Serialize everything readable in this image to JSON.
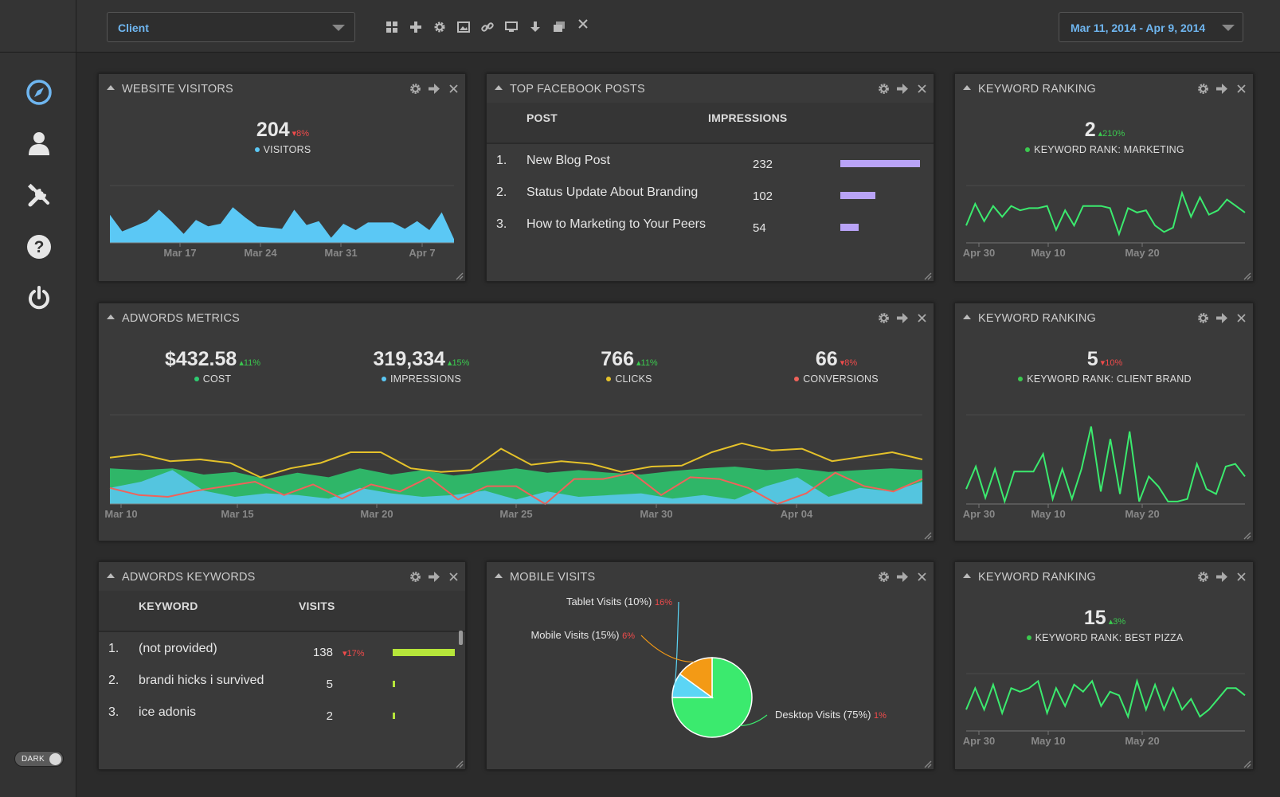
{
  "sidebar": {
    "nav": [
      {
        "icon": "compass-icon",
        "active": true
      },
      {
        "icon": "user-icon"
      },
      {
        "icon": "tools-icon"
      },
      {
        "icon": "help-icon"
      },
      {
        "icon": "power-icon"
      }
    ],
    "theme_toggle": {
      "label": "DARK"
    }
  },
  "topbar": {
    "client_select": {
      "value": "Client"
    },
    "toolbar_icons": [
      "grid-icon",
      "plus-icon",
      "gear-icon",
      "image-icon",
      "link-icon",
      "monitor-icon",
      "download-icon",
      "copy-icon",
      "close-icon"
    ],
    "date_range": {
      "value": "Mar 11, 2014 - Apr 9, 2014"
    }
  },
  "colors": {
    "accent": "#6fb6f0",
    "up": "#3bc94f",
    "down": "#f04b4b",
    "visitors": "#5bc8f5",
    "cost": "#2ecc71",
    "impressions": "#5bc8f5",
    "clicks": "#e5c22a",
    "conversions": "#f0625a",
    "bar_purple": "#b9a3f7",
    "bar_green": "#b6e63a"
  },
  "widgets": {
    "website_visitors": {
      "title": "WEBSITE VISITORS",
      "value": "204",
      "change": "8%",
      "direction": "down",
      "label": "VISITORS",
      "chart_data": {
        "type": "area",
        "x_ticks": [
          "Mar 17",
          "Mar 24",
          "Mar 31",
          "Apr 7"
        ],
        "values": [
          22,
          9,
          13,
          17,
          26,
          17,
          7,
          18,
          13,
          15,
          28,
          20,
          13,
          12,
          11,
          26,
          14,
          17,
          4,
          15,
          10,
          16,
          16,
          16,
          11,
          17,
          10,
          24,
          3
        ],
        "ylim": [
          0,
          45
        ]
      }
    },
    "top_facebook_posts": {
      "title": "TOP FACEBOOK POSTS",
      "columns": [
        "POST",
        "IMPRESSIONS"
      ],
      "rows": [
        {
          "rank": "1.",
          "post": "New Blog Post",
          "impressions": "232",
          "value": 232
        },
        {
          "rank": "2.",
          "post": "Status Update About Branding",
          "impressions": "102",
          "value": 102
        },
        {
          "rank": "3.",
          "post": "How to Marketing to Your Peers",
          "impressions": "54",
          "value": 54
        }
      ]
    },
    "keyword_ranking_1": {
      "title": "KEYWORD RANKING",
      "value": "2",
      "change": "210%",
      "direction": "up",
      "label": "KEYWORD RANK: MARKETING",
      "chart_data": {
        "type": "line",
        "x_ticks": [
          "Apr 30",
          "May 10",
          "May 20"
        ],
        "values": [
          8,
          18,
          10,
          17,
          12,
          17,
          15,
          16,
          16,
          17,
          6,
          15,
          8,
          17,
          17,
          17,
          16,
          4,
          16,
          14,
          15,
          8,
          5,
          7,
          23,
          12,
          21,
          13,
          15,
          20,
          17,
          14
        ]
      }
    },
    "adwords_metrics": {
      "title": "ADWORDS METRICS",
      "kpis": [
        {
          "value": "$432.58",
          "change": "11%",
          "direction": "up",
          "label": "COST",
          "color": "#2ecc71"
        },
        {
          "value": "319,334",
          "change": "15%",
          "direction": "up",
          "label": "IMPRESSIONS",
          "color": "#5bc8f5"
        },
        {
          "value": "766",
          "change": "11%",
          "direction": "up",
          "label": "CLICKS",
          "color": "#e5c22a"
        },
        {
          "value": "66",
          "change": "8%",
          "direction": "down",
          "label": "CONVERSIONS",
          "color": "#f0625a"
        }
      ],
      "chart_data": {
        "type": "area",
        "x_ticks": [
          "Mar 10",
          "Mar 15",
          "Mar 20",
          "Mar 25",
          "Mar 30",
          "Apr 04"
        ],
        "series": [
          {
            "name": "COST",
            "color": "#2ecc71",
            "values": [
              40,
              38,
              40,
              33,
              36,
              28,
              35,
              30,
              40,
              33,
              38,
              32,
              36,
              40,
              35,
              38,
              35,
              33,
              37,
              40,
              42,
              38,
              40,
              36,
              38,
              40,
              38
            ]
          },
          {
            "name": "IMPRESSIONS",
            "color": "#5bc8f5",
            "values": [
              18,
              25,
              38,
              15,
              8,
              12,
              10,
              6,
              18,
              12,
              8,
              10,
              15,
              5,
              14,
              8,
              10,
              12,
              6,
              10,
              5,
              20,
              30,
              8,
              18,
              14,
              25
            ]
          },
          {
            "name": "CLICKS",
            "color": "#e5c22a",
            "values": [
              52,
              56,
              48,
              50,
              46,
              30,
              40,
              46,
              58,
              58,
              40,
              36,
              38,
              62,
              44,
              48,
              45,
              36,
              42,
              43,
              58,
              68,
              60,
              62,
              48,
              53,
              58,
              50
            ]
          },
          {
            "name": "CONVERSIONS",
            "color": "#f0625a",
            "values": [
              18,
              10,
              8,
              15,
              20,
              25,
              10,
              22,
              6,
              22,
              14,
              30,
              5,
              20,
              20,
              0,
              28,
              28,
              35,
              10,
              30,
              28,
              18,
              0,
              12,
              35,
              20,
              14,
              28
            ]
          }
        ],
        "ylim": [
          0,
          100
        ]
      }
    },
    "keyword_ranking_2": {
      "title": "KEYWORD RANKING",
      "value": "5",
      "change": "10%",
      "direction": "down",
      "label": "KEYWORD RANK: CLIENT BRAND",
      "chart_data": {
        "type": "line",
        "x_ticks": [
          "Apr 30",
          "May 10",
          "May 20"
        ],
        "values": [
          12,
          30,
          5,
          28,
          2,
          26,
          26,
          26,
          40,
          4,
          28,
          4,
          28,
          62,
          10,
          52,
          8,
          58,
          2,
          22,
          14,
          2,
          2,
          4,
          32,
          12,
          8,
          30,
          32,
          22
        ]
      }
    },
    "adwords_keywords": {
      "title": "ADWORDS KEYWORDS",
      "columns": [
        "KEYWORD",
        "VISITS"
      ],
      "rows": [
        {
          "rank": "1.",
          "keyword": "(not provided)",
          "visits": "138",
          "change": "17%",
          "direction": "down",
          "value": 138
        },
        {
          "rank": "2.",
          "keyword": "brandi hicks i survived",
          "visits": "5",
          "value": 5
        },
        {
          "rank": "3.",
          "keyword": "ice adonis",
          "visits": "2",
          "value": 2
        }
      ]
    },
    "mobile_visits": {
      "title": "MOBILE VISITS",
      "chart_data": {
        "type": "pie",
        "slices": [
          {
            "label": "Desktop Visits (75%)",
            "change": "1%",
            "value": 75,
            "color": "#3bea6e"
          },
          {
            "label": "Tablet Visits (10%)",
            "change": "16%",
            "value": 10,
            "color": "#5bd5f5"
          },
          {
            "label": "Mobile Visits (15%)",
            "change": "6%",
            "value": 15,
            "color": "#f39a15"
          }
        ]
      }
    },
    "keyword_ranking_3": {
      "title": "KEYWORD RANKING",
      "value": "15",
      "change": "3%",
      "direction": "up",
      "label": "KEYWORD RANK: BEST PIZZA",
      "chart_data": {
        "type": "line",
        "x_ticks": [
          "Apr 30",
          "May 10",
          "May 20"
        ],
        "values": [
          12,
          24,
          12,
          26,
          10,
          24,
          22,
          24,
          28,
          10,
          24,
          14,
          26,
          22,
          28,
          14,
          22,
          20,
          8,
          28,
          12,
          26,
          12,
          24,
          12,
          18,
          8,
          12,
          18,
          24,
          24,
          20
        ]
      }
    }
  }
}
